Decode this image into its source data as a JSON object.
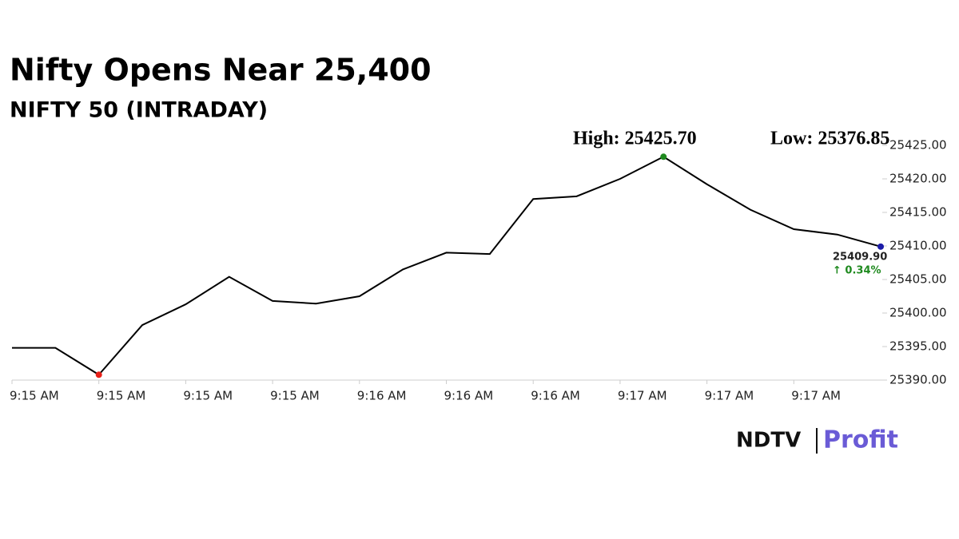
{
  "chart_data": {
    "type": "line",
    "title": "Nifty Opens Near 25,400",
    "subtitle": "NIFTY 50 (INTRADAY)",
    "annotations": {
      "high": "High: 25425.70",
      "low": "Low: 25376.85",
      "last": "25409.90",
      "change": "↑ 0.34%"
    },
    "brand": {
      "left": "NDTV",
      "right": "Profit"
    },
    "categories": [
      "9:15 AM",
      null,
      "9:15 AM",
      null,
      "9:15 AM",
      null,
      "9:15 AM",
      null,
      "9:16 AM",
      null,
      "9:16 AM",
      null,
      "9:16 AM",
      null,
      "9:17 AM",
      null,
      "9:17 AM",
      null,
      "9:17 AM",
      null,
      null
    ],
    "series": [
      {
        "name": "NIFTY 50",
        "color": "#000000",
        "values": [
          25394.8,
          25394.8,
          25390.8,
          25398.2,
          25401.3,
          25405.4,
          25401.8,
          25401.4,
          25402.5,
          25406.5,
          25409.0,
          25408.8,
          25417.0,
          25417.4,
          25420.0,
          25423.3,
          25419.2,
          25415.4,
          25412.5,
          25411.7,
          25409.9
        ]
      }
    ],
    "markers": [
      {
        "index": 2,
        "color": "#e8211a"
      },
      {
        "index": 15,
        "color": "#1f8a1f"
      },
      {
        "index": 20,
        "color": "#1c1ca8"
      }
    ],
    "ylim": [
      25390,
      25425
    ],
    "yticks": [
      {
        "value": 25390,
        "label": "25390.00"
      },
      {
        "value": 25395,
        "label": "25395.00"
      },
      {
        "value": 25400,
        "label": "25400.00"
      },
      {
        "value": 25405,
        "label": "25405.00"
      },
      {
        "value": 25410,
        "label": "25410.00"
      },
      {
        "value": 25415,
        "label": "25415.00"
      },
      {
        "value": 25420,
        "label": "25420.00"
      },
      {
        "value": 25425,
        "label": "25425.00"
      }
    ],
    "grid": false
  }
}
